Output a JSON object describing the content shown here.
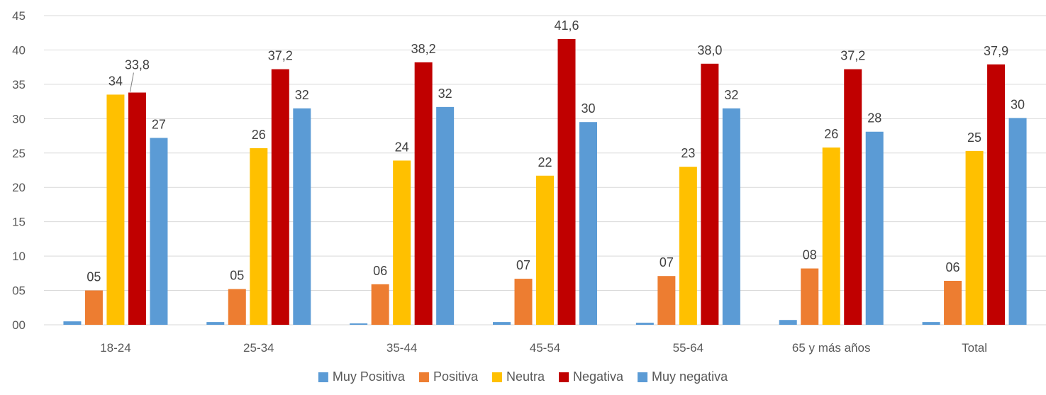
{
  "chart_data": {
    "type": "bar",
    "title": "",
    "xlabel": "",
    "ylabel": "",
    "ylim": [
      0,
      45
    ],
    "yticks": [
      "00",
      "05",
      "10",
      "15",
      "20",
      "25",
      "30",
      "35",
      "40",
      "45"
    ],
    "grid": true,
    "legend_position": "bottom",
    "categories": [
      "18-24",
      "25-34",
      "35-44",
      "45-54",
      "55-64",
      "65 y más años",
      "Total"
    ],
    "series": [
      {
        "name": "Muy Positiva",
        "color": "#5B9BD5",
        "values": [
          0.5,
          0.4,
          0.2,
          0.4,
          0.3,
          0.7,
          0.4
        ],
        "labels": [
          "",
          "",
          "",
          "",
          "",
          "",
          ""
        ]
      },
      {
        "name": "Positiva",
        "color": "#ED7D31",
        "values": [
          5.0,
          5.2,
          5.9,
          6.7,
          7.1,
          8.2,
          6.4
        ],
        "labels": [
          "05",
          "05",
          "06",
          "07",
          "07",
          "08",
          "06"
        ]
      },
      {
        "name": "Neutra",
        "color": "#FFC000",
        "values": [
          33.5,
          25.7,
          23.9,
          21.7,
          23.0,
          25.8,
          25.3
        ],
        "labels": [
          "34",
          "26",
          "24",
          "22",
          "23",
          "26",
          "25"
        ]
      },
      {
        "name": "Negativa",
        "color": "#C00000",
        "values": [
          33.8,
          37.2,
          38.2,
          41.6,
          38.0,
          37.2,
          37.9
        ],
        "labels": [
          "33,8",
          "37,2",
          "38,2",
          "41,6",
          "38,0",
          "37,2",
          "37,9"
        ]
      },
      {
        "name": "Muy negativa",
        "color": "#5B9BD5",
        "values": [
          27.2,
          31.5,
          31.7,
          29.5,
          31.5,
          28.1,
          30.1
        ],
        "labels": [
          "27",
          "32",
          "32",
          "30",
          "32",
          "28",
          "30"
        ]
      }
    ]
  }
}
